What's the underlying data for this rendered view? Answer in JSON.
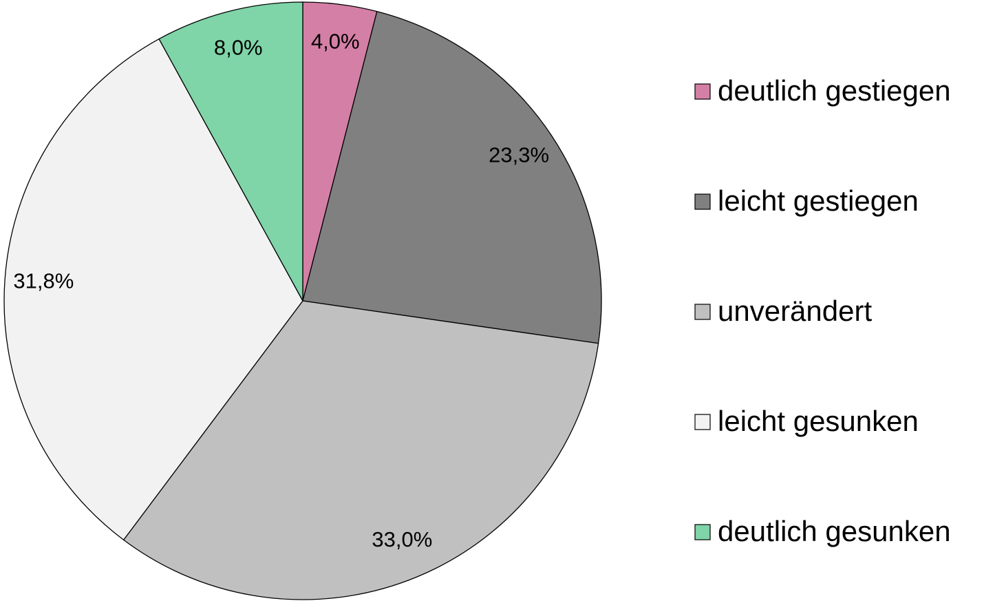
{
  "chart_data": {
    "type": "pie",
    "categories": [
      "deutlich gestiegen",
      "leicht gestiegen",
      "unverändert",
      "leicht gesunken",
      "deutlich gesunken"
    ],
    "values": [
      4.0,
      23.3,
      33.0,
      31.8,
      8.0
    ],
    "value_labels": [
      "4,0%",
      "23,3%",
      "33,0%",
      "31,8%",
      "8,0%"
    ],
    "colors": [
      "#d47fa6",
      "#808080",
      "#c0c0c0",
      "#f2f2f2",
      "#7fd4a8"
    ],
    "legend": "right"
  }
}
